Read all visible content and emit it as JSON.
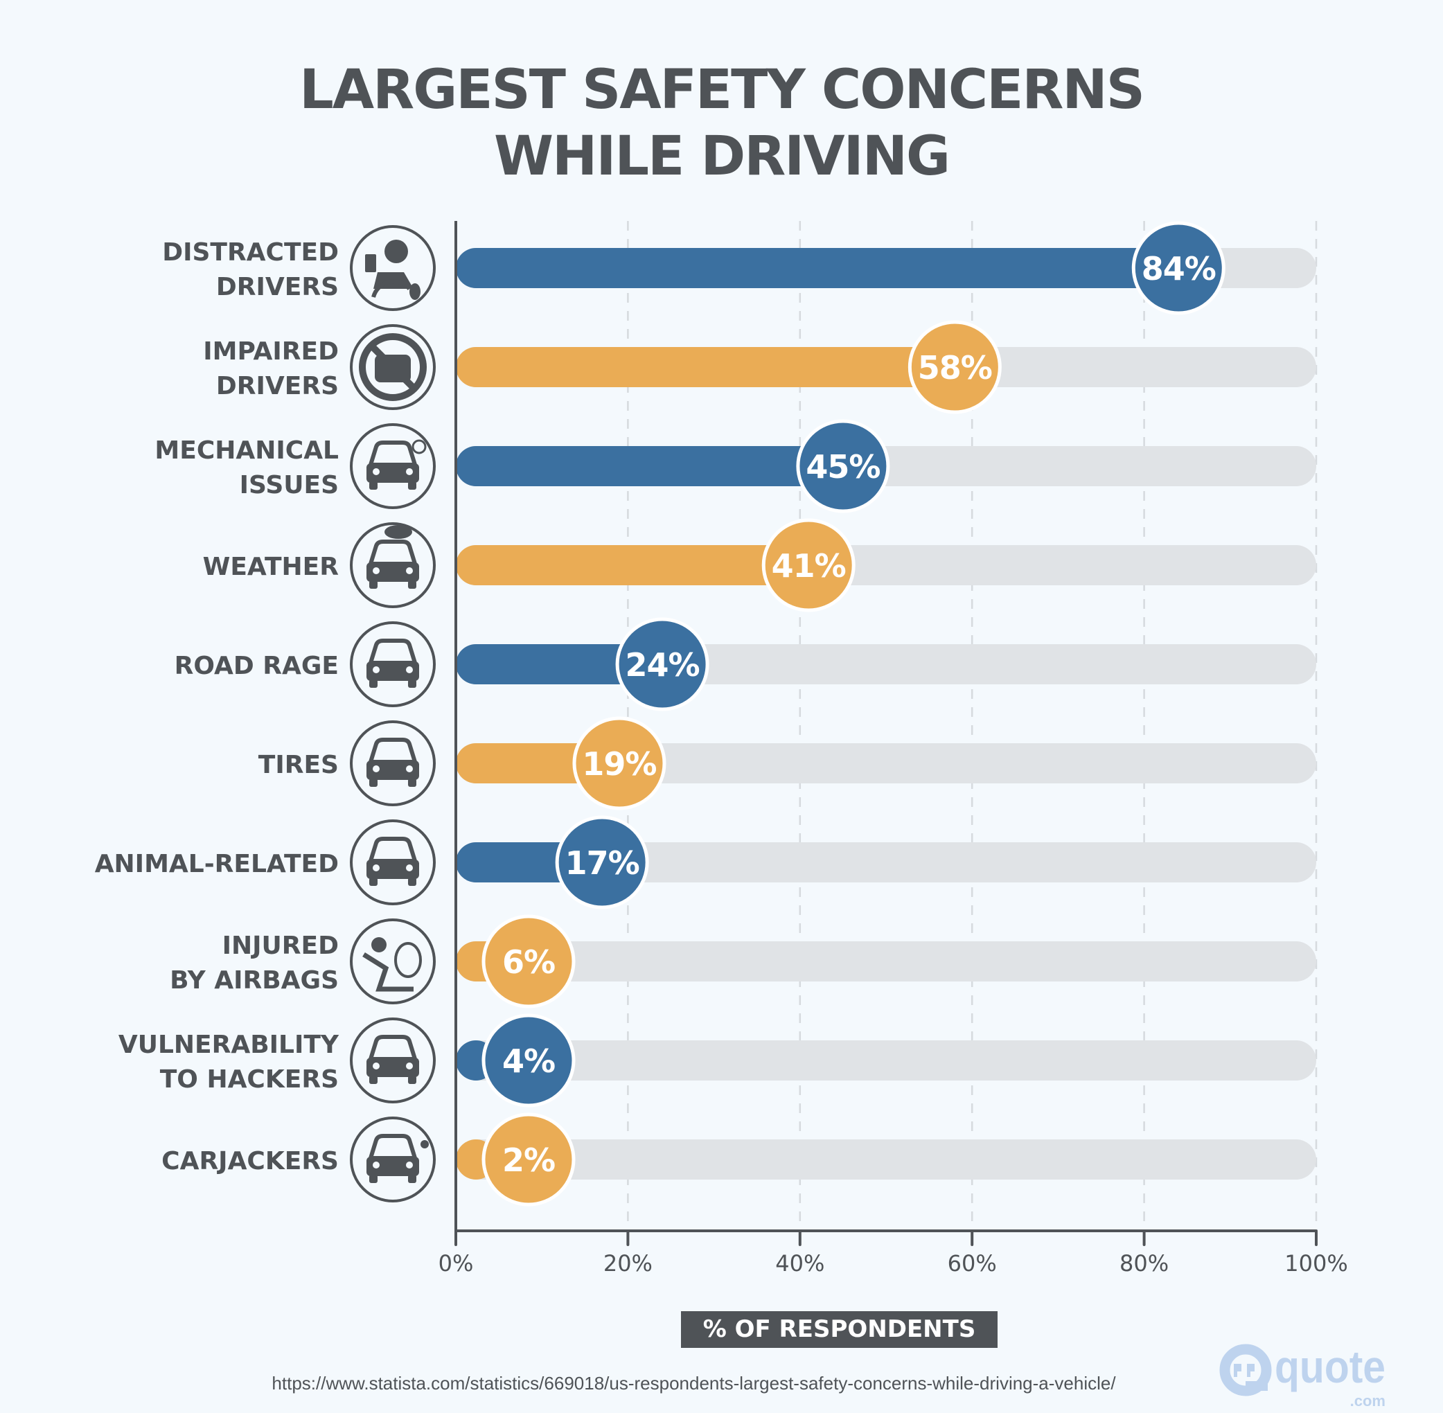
{
  "title": {
    "line1": "LARGEST SAFETY CONCERNS",
    "line2": "WHILE DRIVING"
  },
  "chart_data": {
    "type": "bar",
    "orientation": "horizontal",
    "title": "LARGEST SAFETY CONCERNS WHILE DRIVING",
    "xlabel": "% OF RESPONDENTS",
    "ylabel": "",
    "xlim": [
      0,
      100
    ],
    "x_ticks": [
      "0%",
      "20%",
      "40%",
      "60%",
      "80%",
      "100%"
    ],
    "grid": "vertical dashed",
    "categories": [
      {
        "lines": [
          "DISTRACTED",
          "DRIVERS"
        ],
        "icon": "distracted-driver-icon",
        "value": 84,
        "label": "84%",
        "color": "#3b70a0"
      },
      {
        "lines": [
          "IMPAIRED",
          "DRIVERS"
        ],
        "icon": "no-car-icon",
        "value": 58,
        "label": "58%",
        "color": "#eaac55"
      },
      {
        "lines": [
          "MECHANICAL",
          "ISSUES"
        ],
        "icon": "smoking-car-icon",
        "value": 45,
        "label": "45%",
        "color": "#3b70a0"
      },
      {
        "lines": [
          "WEATHER"
        ],
        "icon": "rain-car-icon",
        "value": 41,
        "label": "41%",
        "color": "#eaac55"
      },
      {
        "lines": [
          "ROAD RAGE"
        ],
        "icon": "angry-car-icon",
        "value": 24,
        "label": "24%",
        "color": "#3b70a0"
      },
      {
        "lines": [
          "TIRES"
        ],
        "icon": "flat-tire-car-icon",
        "value": 19,
        "label": "19%",
        "color": "#eaac55"
      },
      {
        "lines": [
          "ANIMAL-RELATED"
        ],
        "icon": "animal-car-icon",
        "value": 17,
        "label": "17%",
        "color": "#3b70a0"
      },
      {
        "lines": [
          "INJURED",
          "BY AIRBAGS"
        ],
        "icon": "airbag-icon",
        "value": 6,
        "label": "6%",
        "color": "#eaac55"
      },
      {
        "lines": [
          "VULNERABILITY",
          "TO HACKERS"
        ],
        "icon": "hacker-car-icon",
        "value": 4,
        "label": "4%",
        "color": "#3b70a0"
      },
      {
        "lines": [
          "CARJACKERS"
        ],
        "icon": "carjacker-icon",
        "value": 2,
        "label": "2%",
        "color": "#eaac55"
      }
    ],
    "colors": {
      "blue": "#3b70a0",
      "orange": "#eaac55",
      "track": "#e0e3e6",
      "text": "#4f5357"
    }
  },
  "source": "https://www.statista.com/statistics/669018/us-respondents-largest-safety-concerns-while-driving-a-vehicle/",
  "logo": {
    "text": "quote",
    "suffix": ".com"
  }
}
